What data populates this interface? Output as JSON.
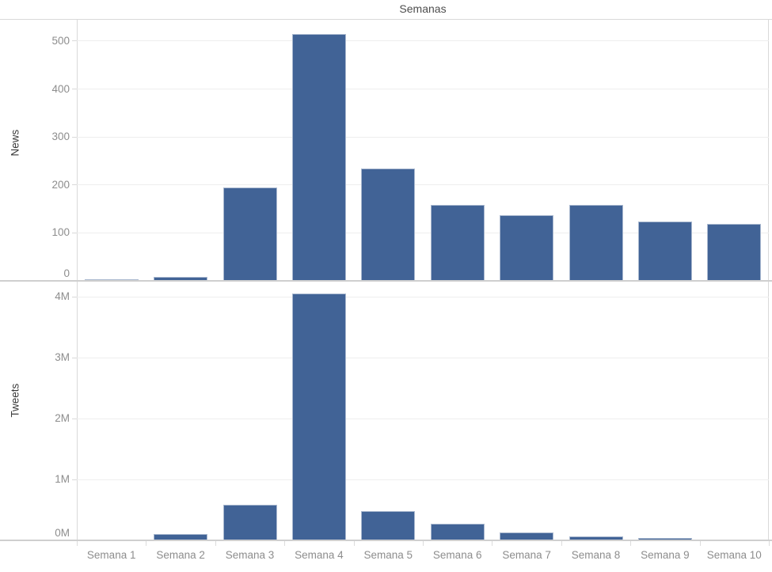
{
  "title": "Semanas",
  "colors": {
    "bar": "#416396",
    "gridline": "#eeeeee",
    "panel_border": "#d9d9d9",
    "axis_baseline": "#cfcfcf",
    "tick_label": "#8d8d8d",
    "row_label": "#3c3c3c",
    "title": "#4e4e4e"
  },
  "chart_data": {
    "type": "bar",
    "title": "Semanas",
    "grid": true,
    "legend_position": "none",
    "bar_color": "#416396",
    "categories": [
      "Semana 1",
      "Semana 2",
      "Semana 3",
      "Semana 4",
      "Semana 5",
      "Semana 6",
      "Semana 7",
      "Semana 8",
      "Semana 9",
      "Semana 10"
    ],
    "panels": [
      {
        "ylabel": "News",
        "values": [
          3,
          8,
          195,
          515,
          235,
          159,
          137,
          159,
          124,
          118
        ],
        "ylim": [
          0,
          546
        ],
        "yticks": [
          0,
          100,
          200,
          300,
          400,
          500
        ],
        "ytick_labels": [
          "0",
          "100",
          "200",
          "300",
          "400",
          "500"
        ]
      },
      {
        "ylabel": "Tweets",
        "values": [
          0,
          100000,
          580000,
          4050000,
          480000,
          270000,
          130000,
          60000,
          40000,
          15000
        ],
        "ylim": [
          0,
          4260000
        ],
        "yticks": [
          0,
          1000000,
          2000000,
          3000000,
          4000000
        ],
        "ytick_labels": [
          "0M",
          "1M",
          "2M",
          "3M",
          "4M"
        ]
      }
    ]
  }
}
